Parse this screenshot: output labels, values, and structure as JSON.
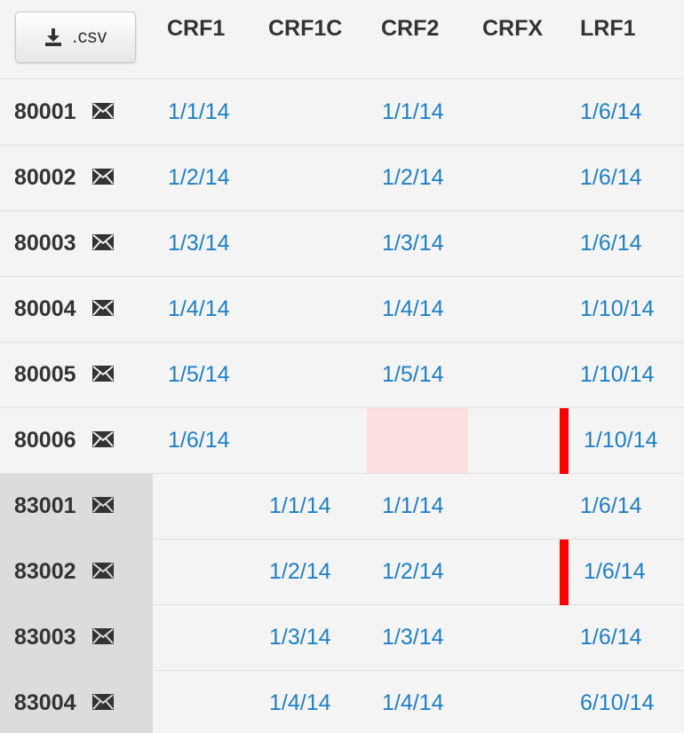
{
  "toolbar": {
    "csv_label": ".csv"
  },
  "columns": [
    "CRF1",
    "CRF1C",
    "CRF2",
    "CRFX",
    "LRF1"
  ],
  "rows": [
    {
      "id": "80001",
      "crf1": "1/1/14",
      "crf1c": "",
      "crf2": "1/1/14",
      "crfx": "",
      "lrf1": "1/6/14"
    },
    {
      "id": "80002",
      "crf1": "1/2/14",
      "crf1c": "",
      "crf2": "1/2/14",
      "crfx": "",
      "lrf1": "1/6/14"
    },
    {
      "id": "80003",
      "crf1": "1/3/14",
      "crf1c": "",
      "crf2": "1/3/14",
      "crfx": "",
      "lrf1": "1/6/14"
    },
    {
      "id": "80004",
      "crf1": "1/4/14",
      "crf1c": "",
      "crf2": "1/4/14",
      "crfx": "",
      "lrf1": "1/10/14"
    },
    {
      "id": "80005",
      "crf1": "1/5/14",
      "crf1c": "",
      "crf2": "1/5/14",
      "crfx": "",
      "lrf1": "1/10/14"
    },
    {
      "id": "80006",
      "crf1": "1/6/14",
      "crf1c": "",
      "crf2": "",
      "crfx": "",
      "lrf1": "1/10/14"
    },
    {
      "id": "83001",
      "crf1": "",
      "crf1c": "1/1/14",
      "crf2": "1/1/14",
      "crfx": "",
      "lrf1": "1/6/14"
    },
    {
      "id": "83002",
      "crf1": "",
      "crf1c": "1/2/14",
      "crf2": "1/2/14",
      "crfx": "",
      "lrf1": "1/6/14"
    },
    {
      "id": "83003",
      "crf1": "",
      "crf1c": "1/3/14",
      "crf2": "1/3/14",
      "crfx": "",
      "lrf1": "1/6/14"
    },
    {
      "id": "83004",
      "crf1": "",
      "crf1c": "1/4/14",
      "crf2": "1/4/14",
      "crfx": "",
      "lrf1": "6/10/14"
    }
  ],
  "colors": {
    "link": "#1f7fc4",
    "missing_cell": "#fde0e0",
    "alert_bar": "#ff0000",
    "group_shade": "#dcdcdc"
  },
  "icons": {
    "download": "download-icon",
    "mail": "envelope-icon"
  }
}
